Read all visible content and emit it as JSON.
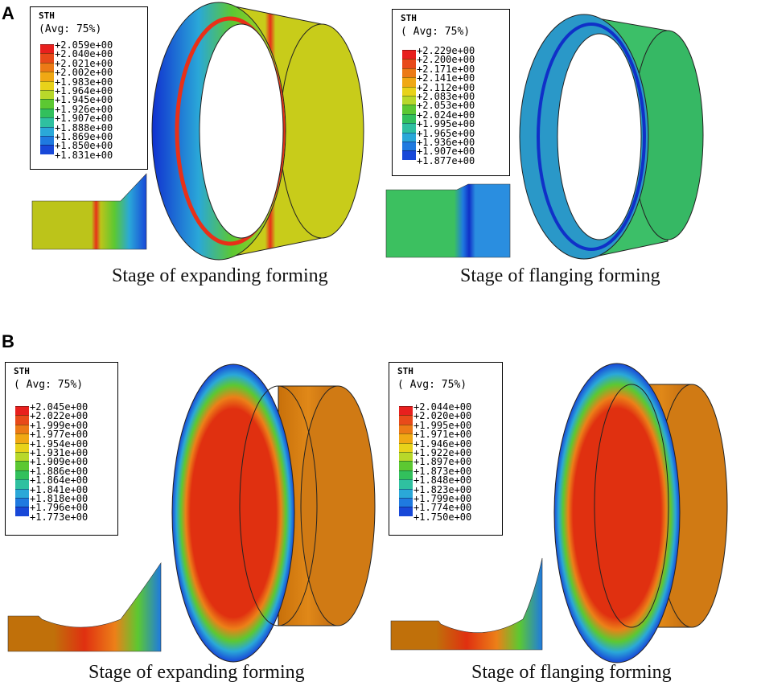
{
  "panels": [
    {
      "letter": "A",
      "subfigures": [
        {
          "legend_title": "STH",
          "legend_avg": "(Avg: 75%)",
          "legend_values": [
            "+2.059e+00",
            "+2.040e+00",
            "+2.021e+00",
            "+2.002e+00",
            "+1.983e+00",
            "+1.964e+00",
            "+1.945e+00",
            "+1.926e+00",
            "+1.907e+00",
            "+1.888e+00",
            "+1.869e+00",
            "+1.850e+00",
            "+1.831e+00"
          ],
          "caption": "Stage of expanding forming"
        },
        {
          "legend_title": "STH",
          "legend_avg": "( Avg: 75%)",
          "legend_values": [
            "+2.229e+00",
            "+2.200e+00",
            "+2.171e+00",
            "+2.141e+00",
            "+2.112e+00",
            "+2.083e+00",
            "+2.053e+00",
            "+2.024e+00",
            "+1.995e+00",
            "+1.965e+00",
            "+1.936e+00",
            "+1.907e+00",
            "+1.877e+00"
          ],
          "caption": "Stage of flanging forming"
        }
      ]
    },
    {
      "letter": "B",
      "subfigures": [
        {
          "legend_title": "STH",
          "legend_avg": "( Avg: 75%)",
          "legend_values": [
            "+2.045e+00",
            "+2.022e+00",
            "+1.999e+00",
            "+1.977e+00",
            "+1.954e+00",
            "+1.931e+00",
            "+1.909e+00",
            "+1.886e+00",
            "+1.864e+00",
            "+1.841e+00",
            "+1.818e+00",
            "+1.796e+00",
            "+1.773e+00"
          ],
          "caption": "Stage of expanding forming"
        },
        {
          "legend_title": "STH",
          "legend_avg": "( Avg: 75%)",
          "legend_values": [
            "+2.044e+00",
            "+2.020e+00",
            "+1.995e+00",
            "+1.971e+00",
            "+1.946e+00",
            "+1.922e+00",
            "+1.897e+00",
            "+1.873e+00",
            "+1.848e+00",
            "+1.823e+00",
            "+1.799e+00",
            "+1.774e+00",
            "+1.750e+00"
          ],
          "caption": "Stage of flanging forming"
        }
      ]
    }
  ],
  "colormap": [
    "#e8201e",
    "#e84a1a",
    "#ec7a16",
    "#f0a814",
    "#e8d21a",
    "#b8d82a",
    "#5cc832",
    "#32c05c",
    "#2fc0a0",
    "#2aa8d8",
    "#1f7ae0",
    "#1848d8",
    "#1020c8"
  ]
}
